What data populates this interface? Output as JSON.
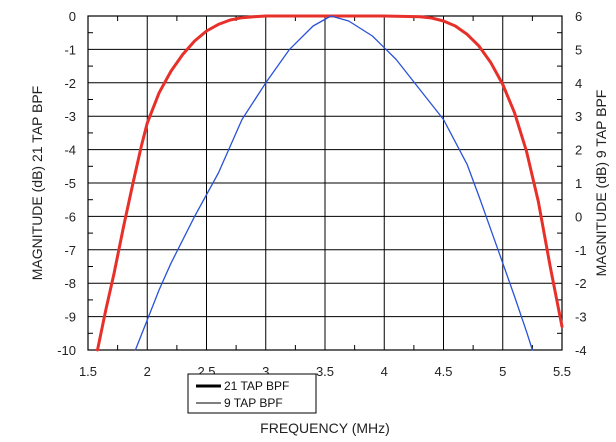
{
  "chart_data": {
    "type": "line",
    "title": "",
    "xlabel": "FREQUENCY (MHz)",
    "ylabel_left": "MAGNITUDE (dB) 21 TAP BPF",
    "ylabel_right": "MAGNITUDE (dB) 9 TAP BPF",
    "xlim": [
      1.5,
      5.5
    ],
    "ylim_left": [
      -10,
      0
    ],
    "ylim_right": [
      -4,
      6
    ],
    "x_ticks": [
      "1.5",
      "2",
      "2.5",
      "3",
      "3.5",
      "4",
      "4.5",
      "5",
      "5.5"
    ],
    "x_tick_values": [
      1.5,
      2,
      2.5,
      3,
      3.5,
      4,
      4.5,
      5,
      5.5
    ],
    "y_left_ticks": [
      "0",
      "-1",
      "-2",
      "-3",
      "-4",
      "-5",
      "-6",
      "-7",
      "-8",
      "-9",
      "-10"
    ],
    "y_left_tick_values": [
      0,
      -1,
      -2,
      -3,
      -4,
      -5,
      -6,
      -7,
      -8,
      -9,
      -10
    ],
    "y_right_ticks": [
      "6",
      "5",
      "4",
      "3",
      "2",
      "1",
      "0",
      "-1",
      "-2",
      "-3",
      "-4"
    ],
    "y_right_tick_values": [
      6,
      5,
      4,
      3,
      2,
      1,
      0,
      -1,
      -2,
      -3,
      -4
    ],
    "grid": true,
    "legend_position": "bottom-left",
    "series": [
      {
        "name": "21 TAP BPF",
        "axis": "left",
        "color": "#e8302a",
        "x": [
          1.58,
          1.65,
          1.72,
          1.8,
          1.88,
          1.95,
          2.0,
          2.1,
          2.2,
          2.3,
          2.4,
          2.5,
          2.6,
          2.7,
          2.8,
          2.9,
          3.0,
          3.5,
          4.0,
          4.3,
          4.4,
          4.5,
          4.6,
          4.7,
          4.8,
          4.9,
          5.0,
          5.1,
          5.2,
          5.3,
          5.4,
          5.5
        ],
        "y": [
          -10.0,
          -8.8,
          -7.7,
          -6.3,
          -5.0,
          -3.9,
          -3.2,
          -2.3,
          -1.65,
          -1.15,
          -0.75,
          -0.45,
          -0.25,
          -0.12,
          -0.05,
          -0.02,
          0.0,
          0.0,
          0.0,
          -0.02,
          -0.06,
          -0.15,
          -0.3,
          -0.55,
          -0.9,
          -1.4,
          -2.05,
          -2.9,
          -4.05,
          -5.55,
          -7.5,
          -9.3
        ]
      },
      {
        "name": "9 TAP BPF",
        "axis": "right",
        "color": "#2a52d8",
        "x": [
          1.9,
          2.0,
          2.1,
          2.2,
          2.4,
          2.6,
          2.8,
          3.0,
          3.2,
          3.4,
          3.55,
          3.7,
          3.9,
          4.1,
          4.3,
          4.5,
          4.7,
          4.8,
          4.9,
          5.0,
          5.1,
          5.2,
          5.25
        ],
        "y": [
          -4.0,
          -3.1,
          -2.2,
          -1.4,
          0.0,
          1.3,
          2.9,
          4.0,
          5.0,
          5.7,
          6.0,
          5.85,
          5.4,
          4.7,
          3.8,
          2.9,
          1.55,
          0.6,
          -0.4,
          -1.4,
          -2.4,
          -3.45,
          -4.0
        ]
      }
    ]
  }
}
